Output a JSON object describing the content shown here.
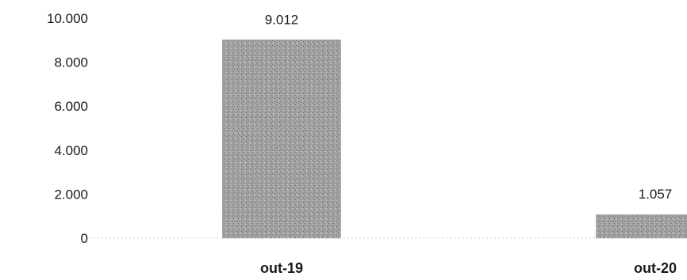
{
  "chart_data": {
    "type": "bar",
    "categories": [
      "out-19",
      "out-20"
    ],
    "values": [
      9012,
      1057
    ],
    "value_labels": [
      "9.012",
      "1.057"
    ],
    "y_ticks": [
      0,
      2000,
      4000,
      6000,
      8000,
      10000
    ],
    "y_tick_labels": [
      "0",
      "2.000",
      "4.000",
      "6.000",
      "8.000",
      "10.000"
    ],
    "ylim": [
      0,
      10000
    ],
    "title": "",
    "xlabel": "",
    "ylabel": "",
    "grid": false,
    "colors": {
      "bar": "#9a9a9a",
      "axis": "#cfcfcf",
      "text": "#1a1a1a"
    }
  }
}
